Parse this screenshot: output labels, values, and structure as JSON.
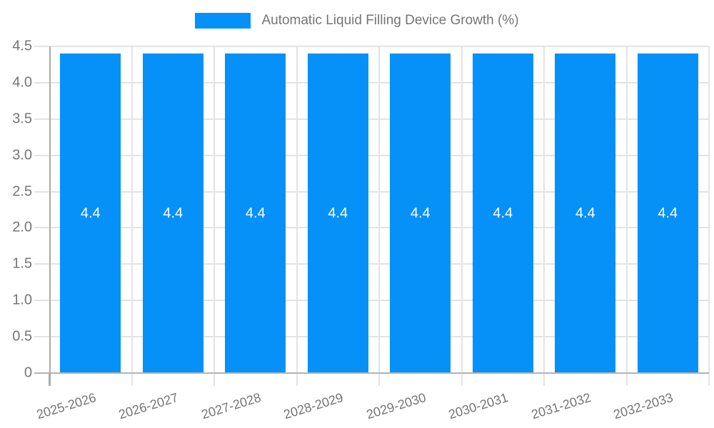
{
  "chart_data": {
    "type": "bar",
    "categories": [
      "2025-2026",
      "2026-2027",
      "2027-2028",
      "2028-2029",
      "2029-2030",
      "2030-2031",
      "2031-2032",
      "2032-2033"
    ],
    "values": [
      4.4,
      4.4,
      4.4,
      4.4,
      4.4,
      4.4,
      4.4,
      4.4
    ],
    "bar_value_labels": [
      "4.4",
      "4.4",
      "4.4",
      "4.4",
      "4.4",
      "4.4",
      "4.4",
      "4.4"
    ],
    "legend": {
      "label": "Automatic Liquid Filling Device Growth (%)"
    },
    "title": "Automatic Liquid Filling Device Growth (%)",
    "xlabel": "",
    "ylabel": "",
    "ylim": [
      0,
      4.5
    ],
    "ytick_step": 0.5,
    "ytick_labels": [
      "0",
      "0.5",
      "1.0",
      "1.5",
      "2.0",
      "2.5",
      "3.0",
      "3.5",
      "4.0",
      "4.5"
    ],
    "grid": true,
    "legend_position": "top-center",
    "colors": {
      "bar": "#0591f8",
      "value_text": "#ffffff",
      "axis_text": "#757575",
      "gridline": "#e3e3e3",
      "axis_line": "#ababab",
      "baseline": "#b3b3b3",
      "background": "#ffffff"
    }
  }
}
